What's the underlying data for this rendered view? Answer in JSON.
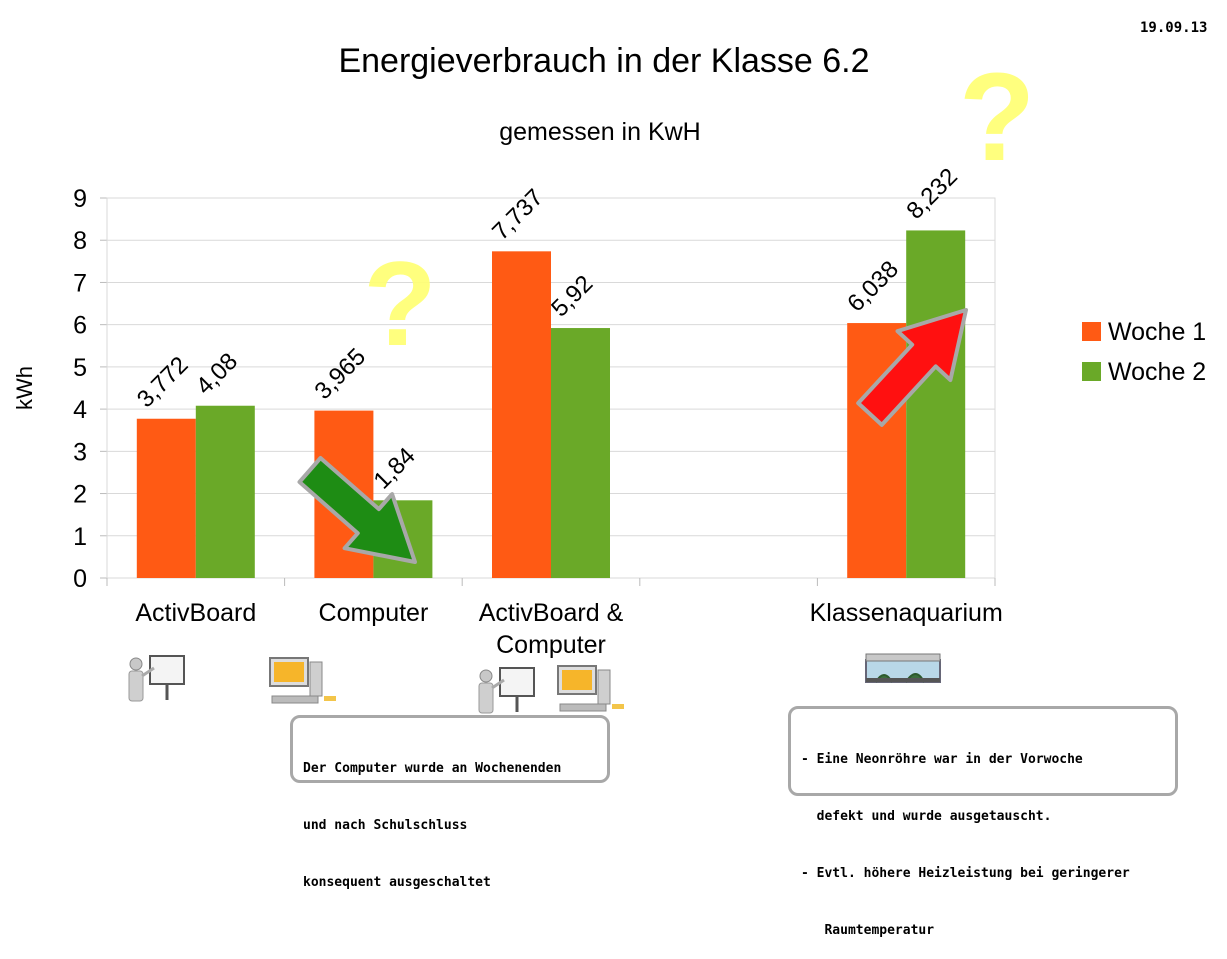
{
  "date": "19.09.13",
  "chart_data": {
    "type": "bar",
    "title": "Energieverbrauch in der Klasse 6.2",
    "subtitle": "gemessen in KwH",
    "ylabel": "kWh",
    "xlabel": "",
    "ylim": [
      0,
      9
    ],
    "yticks": [
      "0",
      "1",
      "2",
      "3",
      "4",
      "5",
      "6",
      "7",
      "8",
      "9"
    ],
    "grid": true,
    "legend_position": "right",
    "categories": [
      "ActivBoard",
      "Computer",
      "ActivBoard & Computer",
      "",
      "Klassenaquarium"
    ],
    "category_lines": [
      [
        "ActivBoard"
      ],
      [
        "Computer"
      ],
      [
        "ActivBoard &",
        "Computer"
      ],
      [],
      [
        "Klassenaquarium"
      ]
    ],
    "series": [
      {
        "name": "Woche 1",
        "color": "#ff5a14",
        "values": [
          3.772,
          3.965,
          7.737,
          null,
          6.038
        ],
        "labels": [
          "3,772",
          "3,965",
          "7,737",
          "",
          "6,038"
        ]
      },
      {
        "name": "Woche 2",
        "color": "#6aa928",
        "values": [
          4.08,
          1.84,
          5.92,
          null,
          8.232
        ],
        "labels": [
          "4,08",
          "1,84",
          "5,92",
          "",
          "8,232"
        ]
      }
    ],
    "annotations": {
      "question_mark": "?",
      "down_arrow_color": "#1e8c14",
      "up_arrow_color": "#ff1010"
    }
  },
  "notes": {
    "computer": [
      "Der Computer wurde an Wochenenden",
      "und nach Schulschluss",
      "konsequent ausgeschaltet"
    ],
    "aquarium": [
      "- Eine Neonröhre war in der Vorwoche",
      "  defekt und wurde ausgetauscht.",
      "- Evtl. höhere Heizleistung bei geringerer",
      "   Raumtemperatur"
    ]
  },
  "icons": [
    "teacher-board-icon",
    "computer-icon",
    "teacher-board-icon",
    "computer-icon",
    "aquarium-icon"
  ]
}
